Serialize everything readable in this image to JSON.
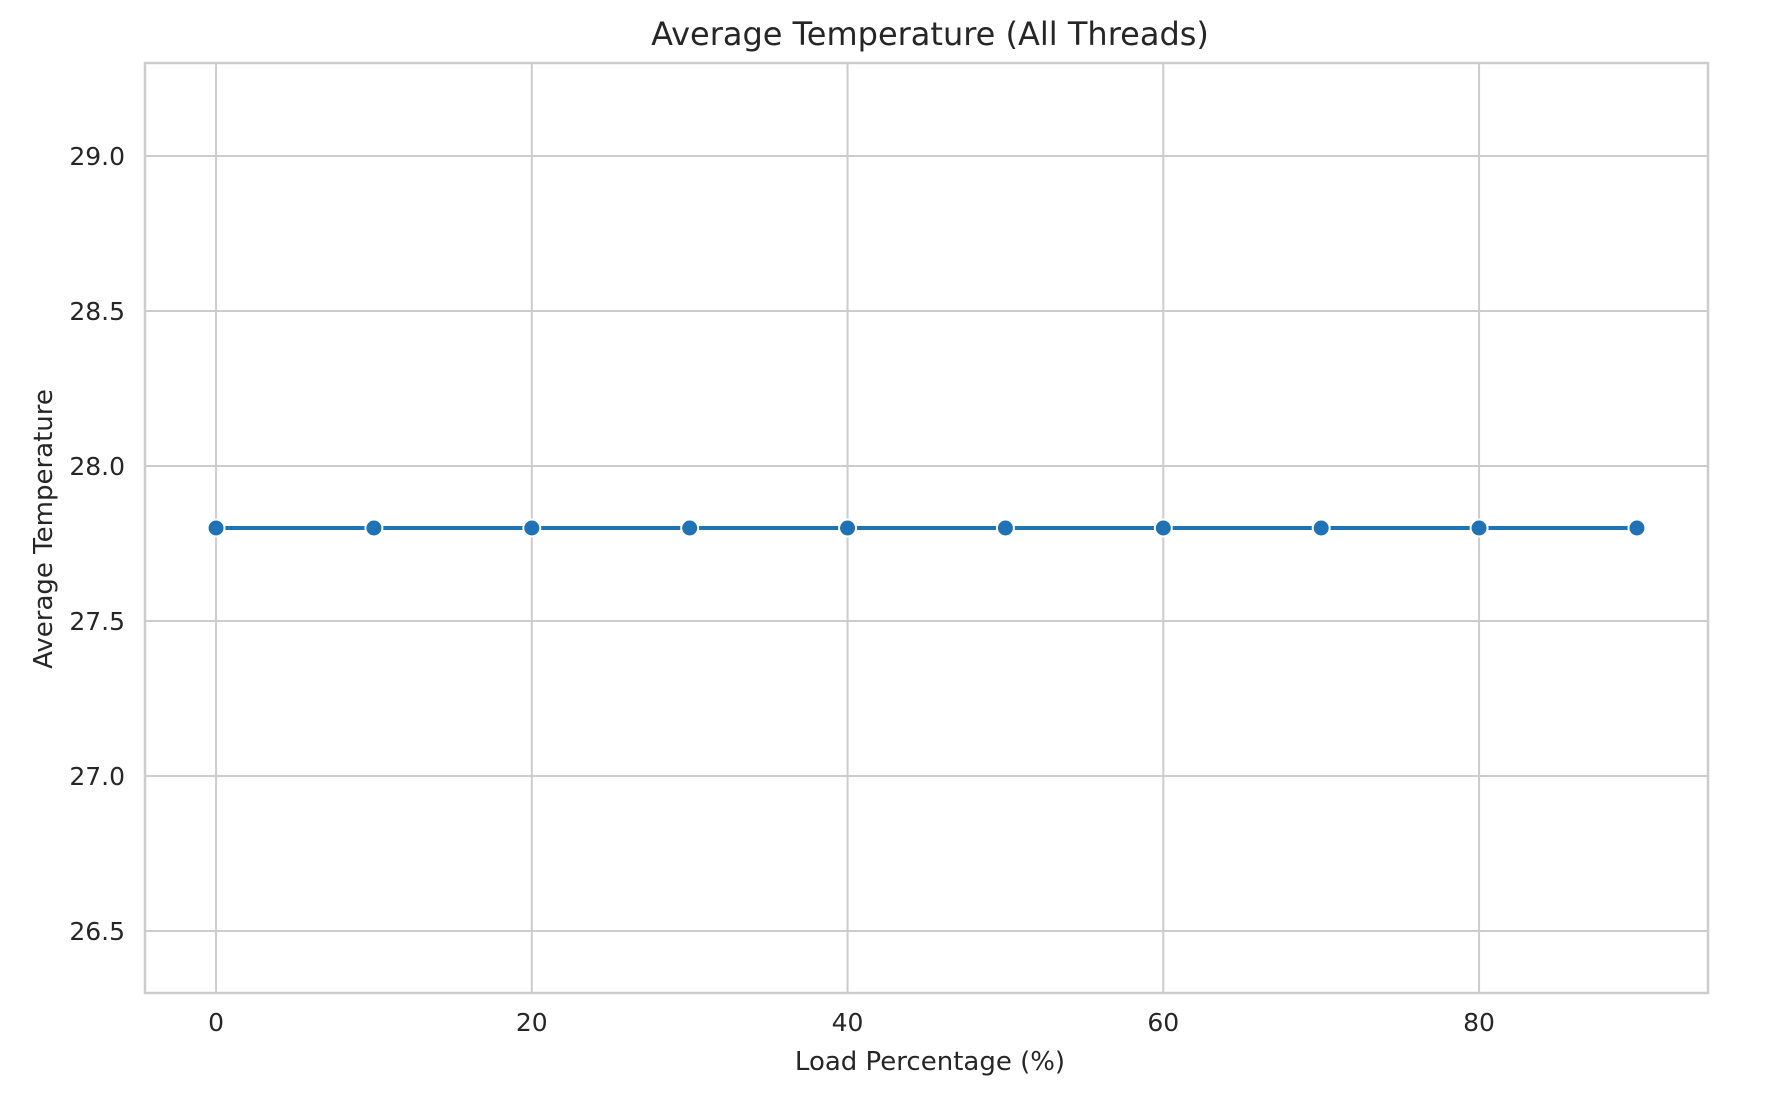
{
  "chart_data": {
    "type": "line",
    "title": "Average Temperature (All Threads)",
    "xlabel": "Load Percentage (%)",
    "ylabel": "Average Temperature",
    "xlim": [
      -4.5,
      94.5
    ],
    "ylim": [
      26.3,
      29.3
    ],
    "x_ticks": [
      0,
      20,
      40,
      60,
      80
    ],
    "y_ticks": [
      26.5,
      27.0,
      27.5,
      28.0,
      28.5,
      29.0
    ],
    "x_tick_labels": [
      "0",
      "20",
      "40",
      "60",
      "80"
    ],
    "y_tick_labels": [
      "26.5",
      "27.0",
      "27.5",
      "28.0",
      "28.5",
      "29.0"
    ],
    "grid": true,
    "legend": "none",
    "series": [
      {
        "color": "#1f72b4",
        "marker": "circle",
        "x": [
          0,
          10,
          20,
          30,
          40,
          50,
          60,
          70,
          80,
          90
        ],
        "y": [
          27.8,
          27.8,
          27.8,
          27.8,
          27.8,
          27.8,
          27.8,
          27.8,
          27.8,
          27.8
        ]
      }
    ]
  }
}
